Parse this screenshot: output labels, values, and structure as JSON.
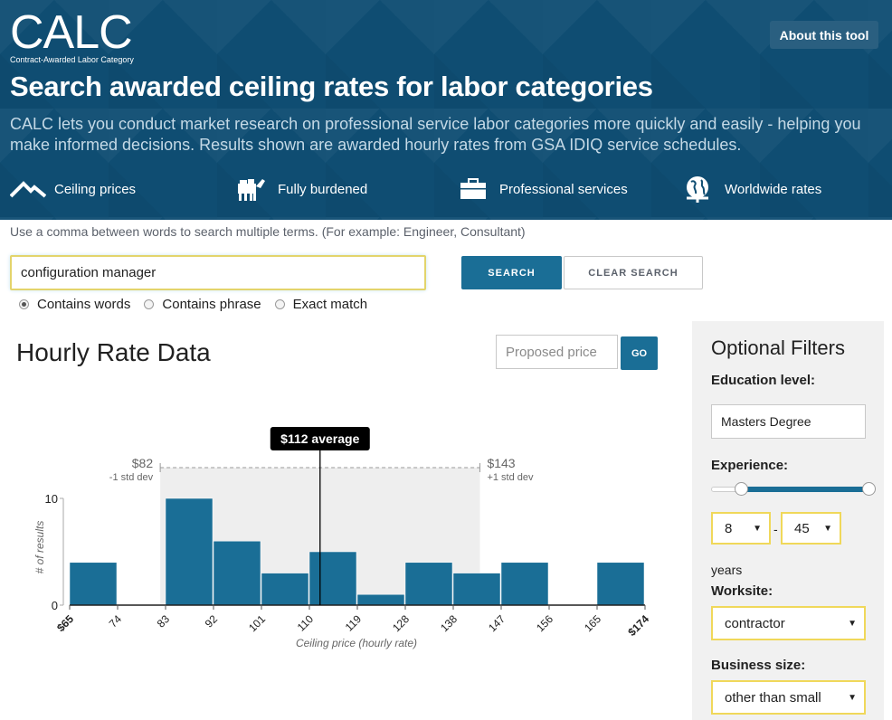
{
  "header": {
    "logo": "CALC",
    "logo_sub": "Contract-Awarded Labor Category",
    "about_button": "About this tool",
    "title": "Search awarded ceiling rates for labor categories",
    "description": "CALC lets you conduct market research on professional service labor categories more quickly and easily - helping you make informed decisions. Results shown are awarded hourly rates from GSA IDIQ service schedules.",
    "features": [
      {
        "label": "Ceiling prices",
        "icon": "roof-icon"
      },
      {
        "label": "Fully burdened",
        "icon": "donkey-icon"
      },
      {
        "label": "Professional services",
        "icon": "briefcase-icon"
      },
      {
        "label": "Worldwide rates",
        "icon": "globe-icon"
      }
    ]
  },
  "search": {
    "hint": "Use a comma between words to search multiple terms. (For example: Engineer, Consultant)",
    "value": "configuration manager",
    "search_button": "SEARCH",
    "clear_button": "CLEAR SEARCH",
    "match_options": [
      "Contains words",
      "Contains phrase",
      "Exact match"
    ],
    "selected_option": "Contains words"
  },
  "rate_section": {
    "title": "Hourly Rate Data",
    "proposed_placeholder": "Proposed price",
    "go_button": "GO"
  },
  "chart_data": {
    "type": "bar",
    "xlabel": "Ceiling price (hourly rate)",
    "ylabel": "# of results",
    "ylim": [
      0,
      10
    ],
    "y_ticks": [
      "0",
      "10"
    ],
    "x_ticks": [
      "$65",
      "74",
      "83",
      "92",
      "101",
      "110",
      "119",
      "128",
      "138",
      "147",
      "156",
      "165",
      "$174"
    ],
    "bins": [
      {
        "from": 65,
        "to": 74,
        "value": 4
      },
      {
        "from": 74,
        "to": 83,
        "value": 0
      },
      {
        "from": 83,
        "to": 92,
        "value": 10
      },
      {
        "from": 92,
        "to": 101,
        "value": 6
      },
      {
        "from": 101,
        "to": 110,
        "value": 3
      },
      {
        "from": 110,
        "to": 119,
        "value": 5
      },
      {
        "from": 119,
        "to": 128,
        "value": 1
      },
      {
        "from": 128,
        "to": 138,
        "value": 4
      },
      {
        "from": 138,
        "to": 147,
        "value": 3
      },
      {
        "from": 147,
        "to": 156,
        "value": 4
      },
      {
        "from": 156,
        "to": 165,
        "value": 0
      },
      {
        "from": 165,
        "to": 174,
        "value": 4
      }
    ],
    "average_label": "$112 average",
    "average_value": 112,
    "std_low": {
      "value": 82,
      "label": "$82",
      "caption": "-1 std dev"
    },
    "std_high": {
      "value": 143,
      "label": "$143",
      "caption": "+1 std dev"
    },
    "colors": {
      "bar": "#1a6e96",
      "band": "#eeeeee"
    }
  },
  "filters": {
    "title": "Optional Filters",
    "education_label": "Education level:",
    "education_value": "Masters Degree",
    "experience_label": "Experience:",
    "experience_min": "8",
    "experience_max": "45",
    "experience_separator": "-",
    "years_label": "years",
    "worksite_label": "Worksite:",
    "worksite_value": "contractor",
    "business_label": "Business size:",
    "business_value": "other than small"
  }
}
